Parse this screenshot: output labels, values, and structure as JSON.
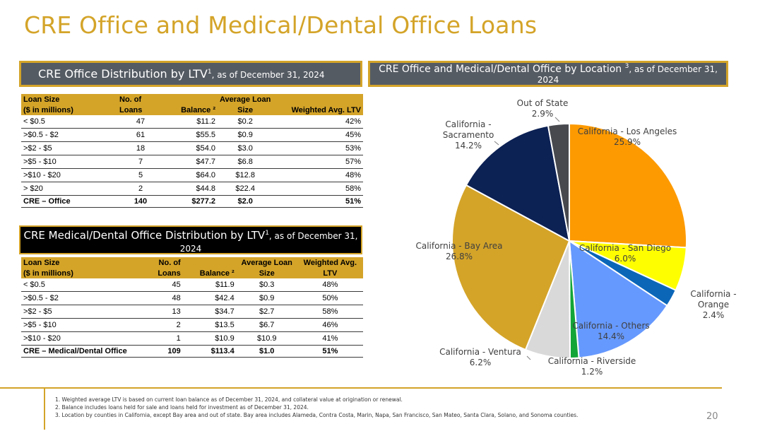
{
  "title": "CRE Office and Medical/Dental Office Loans",
  "office_header": {
    "main": "CRE Office Distribution by LTV",
    "sup": "1",
    "tail": ", as of December 31, 2024"
  },
  "location_header": {
    "main": "CRE Office and Medical/Dental Office by Location ",
    "sup": "3",
    "tail": ", as of December 31, 2024"
  },
  "medical_header": {
    "main": "CRE Medical/Dental Office Distribution by LTV",
    "sup": "1",
    "tail": ", as of December 31, 2024"
  },
  "office_table": {
    "headers": {
      "size1": "Loan Size",
      "size2": "($ in millions)",
      "loans1": "No. of",
      "loans2": "Loans",
      "balance": "Balance ²",
      "avg1": "Average Loan",
      "avg2": "Size",
      "ltv1": "",
      "ltv2": "Weighted Avg. LTV"
    },
    "rows": [
      [
        "< $0.5",
        "47",
        "$11.2",
        "$0.2",
        "42%"
      ],
      [
        ">$0.5 - $2",
        "61",
        "$55.5",
        "$0.9",
        "45%"
      ],
      [
        ">$2 - $5",
        "18",
        "$54.0",
        "$3.0",
        "53%"
      ],
      [
        ">$5 - $10",
        "7",
        "$47.7",
        "$6.8",
        "57%"
      ],
      [
        ">$10 - $20",
        "5",
        "$64.0",
        "$12.8",
        "48%"
      ],
      [
        "> $20",
        "2",
        "$44.8",
        "$22.4",
        "58%"
      ]
    ],
    "total": [
      "CRE – Office",
      "140",
      "$277.2",
      "$2.0",
      "51%"
    ]
  },
  "medical_table": {
    "headers": {
      "size1": "Loan Size",
      "size2": "($ in millions)",
      "loans1": "No. of",
      "loans2": "Loans",
      "balance": "Balance ²",
      "avg1": "Average Loan",
      "avg2": "Size",
      "ltv1": "Weighted Avg.",
      "ltv2": "LTV"
    },
    "rows": [
      [
        "< $0.5",
        "45",
        "$11.9",
        "$0.3",
        "48%"
      ],
      [
        ">$0.5 - $2",
        "48",
        "$42.4",
        "$0.9",
        "50%"
      ],
      [
        ">$2 - $5",
        "13",
        "$34.7",
        "$2.7",
        "58%"
      ],
      [
        ">$5 - $10",
        "2",
        "$13.5",
        "$6.7",
        "46%"
      ],
      [
        ">$10 - $20",
        "1",
        "$10.9",
        "$10.9",
        "41%"
      ]
    ],
    "total": [
      "CRE – Medical/Dental Office",
      "109",
      "$113.4",
      "$1.0",
      "51%"
    ]
  },
  "chart_data": {
    "type": "pie",
    "title": "CRE Office and Medical/Dental Office by Location 3, as of December 31, 2024",
    "slices": [
      {
        "label": "California - Los Angeles",
        "value": 25.9,
        "pct": "25.9%",
        "color": "#fd9a01"
      },
      {
        "label": "California - San Diego",
        "value": 6.0,
        "pct": "6.0%",
        "color": "#fefe01"
      },
      {
        "label": "California - Orange",
        "value": 2.4,
        "pct": "2.4%",
        "color": "#0b66b8"
      },
      {
        "label": "California - Others",
        "value": 14.4,
        "pct": "14.4%",
        "color": "#6699fe"
      },
      {
        "label": "California - Riverside",
        "value": 1.2,
        "pct": "1.2%",
        "color": "#13a538"
      },
      {
        "label": "California - Ventura",
        "value": 6.2,
        "pct": "6.2%",
        "color": "#d9d9d9"
      },
      {
        "label": "California - Bay Area",
        "value": 26.8,
        "pct": "26.8%",
        "color": "#d4a429"
      },
      {
        "label": "California - Sacramento",
        "value": 14.2,
        "pct": "14.2%",
        "color": "#0c2154"
      },
      {
        "label": "Out of State",
        "value": 2.9,
        "pct": "2.9%",
        "color": "#47494f"
      }
    ]
  },
  "footnotes": [
    "1. Weighted average LTV is based on current loan balance as of December 31, 2024, and collateral value at origination or renewal.",
    "2. Balance includes loans held for sale and loans held for investment as of December 31, 2024.",
    "3. Location by counties in California, except Bay area and out of state. Bay area includes Alameda, Contra Costa, Marin, Napa, San Francisco, San Mateo, Santa Clara, Solano, and Sonoma counties."
  ],
  "page_number": "20"
}
